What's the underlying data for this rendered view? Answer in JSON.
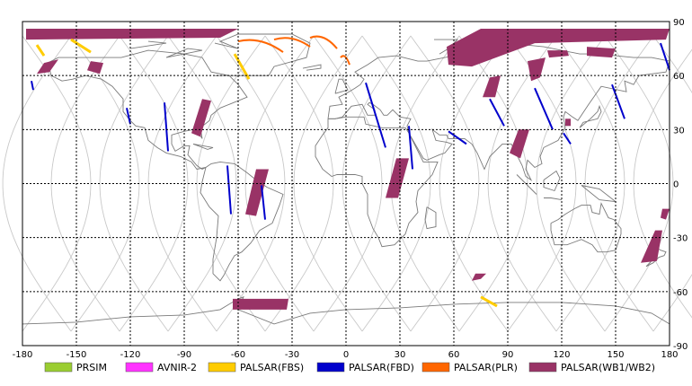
{
  "map": {
    "x_ticks": [
      "-180",
      "-150",
      "-120",
      "-90",
      "-60",
      "-30",
      "0",
      "30",
      "60",
      "90",
      "120",
      "150",
      "180"
    ],
    "y_ticks": [
      "90",
      "60",
      "30",
      "0",
      "-30",
      "-60",
      "-90"
    ],
    "lon_range": [
      -180,
      180
    ],
    "lat_range": [
      -90,
      90
    ],
    "grid": true,
    "orbit_color": "#c8c8c8",
    "coast_color": "#7a7a7a"
  },
  "legend": [
    {
      "label": "PRSIM",
      "color": "#9acd32"
    },
    {
      "label": "AVNIR-2",
      "color": "#ff33ff"
    },
    {
      "label": "PALSAR(FBS)",
      "color": "#ffcc00"
    },
    {
      "label": "PALSAR(FBD)",
      "color": "#0000cc"
    },
    {
      "label": "PALSAR(PLR)",
      "color": "#ff6600"
    },
    {
      "label": "PALSAR(WB1/WB2)",
      "color": "#993366"
    }
  ],
  "observations": {
    "wb": [
      [
        [
          -178,
          86
        ],
        [
          -60,
          86
        ],
        [
          -70,
          81
        ],
        [
          -178,
          80
        ]
      ],
      [
        [
          -168,
          67
        ],
        [
          -160,
          69
        ],
        [
          -165,
          62
        ],
        [
          -172,
          61
        ]
      ],
      [
        [
          -142,
          68
        ],
        [
          -135,
          67
        ],
        [
          -137,
          61
        ],
        [
          -144,
          63
        ]
      ],
      [
        [
          -80,
          47
        ],
        [
          -75,
          46
        ],
        [
          -81,
          26
        ],
        [
          -86,
          28
        ]
      ],
      [
        [
          -63,
          -64
        ],
        [
          -32,
          -64
        ],
        [
          -33,
          -70
        ],
        [
          -63,
          -70
        ]
      ],
      [
        [
          -50,
          8
        ],
        [
          -43,
          8
        ],
        [
          -50,
          -18
        ],
        [
          -56,
          -17
        ]
      ],
      [
        [
          28,
          14
        ],
        [
          35,
          14
        ],
        [
          29,
          -8
        ],
        [
          22,
          -8
        ]
      ],
      [
        [
          56,
          76
        ],
        [
          75,
          86
        ],
        [
          180,
          86
        ],
        [
          178,
          80
        ],
        [
          105,
          78
        ],
        [
          70,
          65
        ],
        [
          57,
          66
        ]
      ],
      [
        [
          80,
          59
        ],
        [
          86,
          60
        ],
        [
          83,
          48
        ],
        [
          76,
          48
        ]
      ],
      [
        [
          101,
          68
        ],
        [
          111,
          70
        ],
        [
          108,
          59
        ],
        [
          103,
          57
        ]
      ],
      [
        [
          112,
          74
        ],
        [
          123,
          74
        ],
        [
          124,
          71
        ],
        [
          113,
          70
        ]
      ],
      [
        [
          134,
          76
        ],
        [
          150,
          75
        ],
        [
          148,
          70
        ],
        [
          134,
          71
        ]
      ],
      [
        [
          96,
          30
        ],
        [
          102,
          30
        ],
        [
          97,
          14
        ],
        [
          91,
          17
        ]
      ],
      [
        [
          122,
          36
        ],
        [
          125,
          36
        ],
        [
          125,
          32
        ],
        [
          122,
          32
        ]
      ],
      [
        [
          172,
          -26
        ],
        [
          176,
          -26
        ],
        [
          173,
          -43
        ],
        [
          164,
          -44
        ]
      ],
      [
        [
          176,
          -14
        ],
        [
          180,
          -14
        ],
        [
          178,
          -20
        ],
        [
          175,
          -19
        ]
      ],
      [
        [
          72,
          -50
        ],
        [
          78,
          -50
        ],
        [
          75,
          -53
        ],
        [
          70,
          -54
        ]
      ]
    ],
    "fbd": [
      [
        [
          -175,
          57
        ],
        [
          -174,
          52
        ]
      ],
      [
        -122,
        [
          42,
          33
        ]
      ],
      [
        -101,
        [
          45,
          18
        ]
      ],
      [
        -66,
        [
          10,
          -17
        ]
      ],
      [
        -47,
        [
          -1,
          -20
        ]
      ],
      [
        [
          11,
          56
        ],
        [
          22,
          20
        ]
      ],
      [
        35,
        [
          32,
          8
        ]
      ],
      [
        [
          57,
          29
        ],
        [
          67,
          22
        ]
      ],
      [
        [
          80,
          47
        ],
        [
          88,
          32
        ]
      ],
      [
        [
          105,
          53
        ],
        [
          115,
          30
        ]
      ],
      [
        [
          121,
          28
        ],
        [
          125,
          22
        ]
      ],
      [
        [
          148,
          55
        ],
        [
          155,
          36
        ]
      ],
      [
        [
          175,
          78
        ],
        [
          180,
          63
        ]
      ]
    ],
    "fbs": [
      [
        [
          -172,
          77
        ],
        [
          -168,
          71
        ]
      ],
      [
        [
          -153,
          80
        ],
        [
          -142,
          73
        ]
      ],
      [
        [
          -62,
          72
        ],
        [
          -54,
          58
        ]
      ],
      [
        [
          75,
          -63
        ],
        [
          84,
          -68
        ]
      ]
    ],
    "plr_arcs": [
      [
        [
          -60,
          79
        ],
        [
          -35,
          73
        ]
      ],
      [
        [
          -40,
          80
        ],
        [
          -20,
          76
        ]
      ],
      [
        [
          -20,
          81
        ],
        [
          -5,
          75
        ]
      ],
      [
        [
          -3,
          70
        ],
        [
          2,
          66
        ]
      ]
    ]
  }
}
